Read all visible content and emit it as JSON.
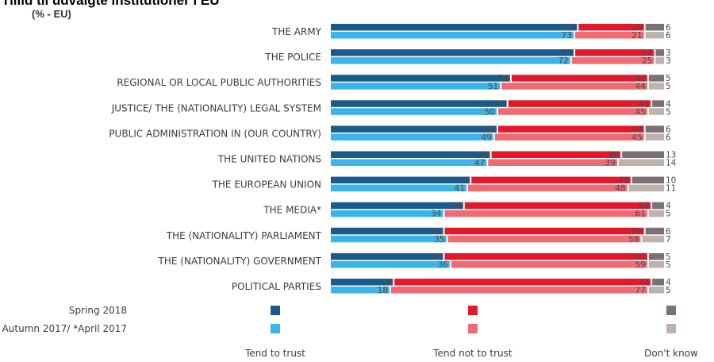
{
  "title": "Tillid til udvalgte institutioner i EU",
  "subtitle": "(% - EU)",
  "chart_data": {
    "type": "bar",
    "orientation": "horizontal",
    "stacked": true,
    "categories": [
      "THE ARMY",
      "THE POLICE",
      "REGIONAL OR LOCAL PUBLIC AUTHORITIES",
      "JUSTICE/ THE (NATIONALITY) LEGAL SYSTEM",
      "PUBLIC ADMINISTRATION IN (OUR COUNTRY)",
      "THE UNITED NATIONS",
      "THE EUROPEAN UNION",
      "THE MEDIA*",
      "THE (NATIONALITY) PARLIAMENT",
      "THE (NATIONALITY) GOVERNMENT",
      "POLITICAL PARTIES"
    ],
    "periods": [
      {
        "name": "Spring 2018",
        "trust": [
          74,
          73,
          54,
          53,
          50,
          48,
          42,
          40,
          34,
          34,
          19
        ],
        "not_trust": [
          20,
          24,
          41,
          43,
          44,
          39,
          48,
          56,
          60,
          61,
          77
        ],
        "dont_know": [
          6,
          3,
          5,
          4,
          6,
          13,
          10,
          4,
          6,
          5,
          4
        ]
      },
      {
        "name": "Autumn 2017/ *April 2017",
        "trust": [
          73,
          72,
          51,
          50,
          49,
          47,
          41,
          34,
          35,
          36,
          18
        ],
        "not_trust": [
          21,
          25,
          44,
          45,
          45,
          39,
          48,
          61,
          58,
          59,
          77
        ],
        "dont_know": [
          6,
          3,
          5,
          5,
          6,
          14,
          11,
          5,
          7,
          5,
          5
        ]
      }
    ],
    "legend": [
      "Tend to trust",
      "Tend not to trust",
      "Don't know"
    ],
    "colors": {
      "trust_spring": "#1b5b8c",
      "trust_autumn": "#3ab4ea",
      "not_trust_spring": "#e3192b",
      "not_trust_autumn": "#f06a72",
      "dont_know_spring": "#7c6f76",
      "dont_know_autumn": "#bfb2a8"
    },
    "xlim": [
      0,
      100
    ]
  }
}
